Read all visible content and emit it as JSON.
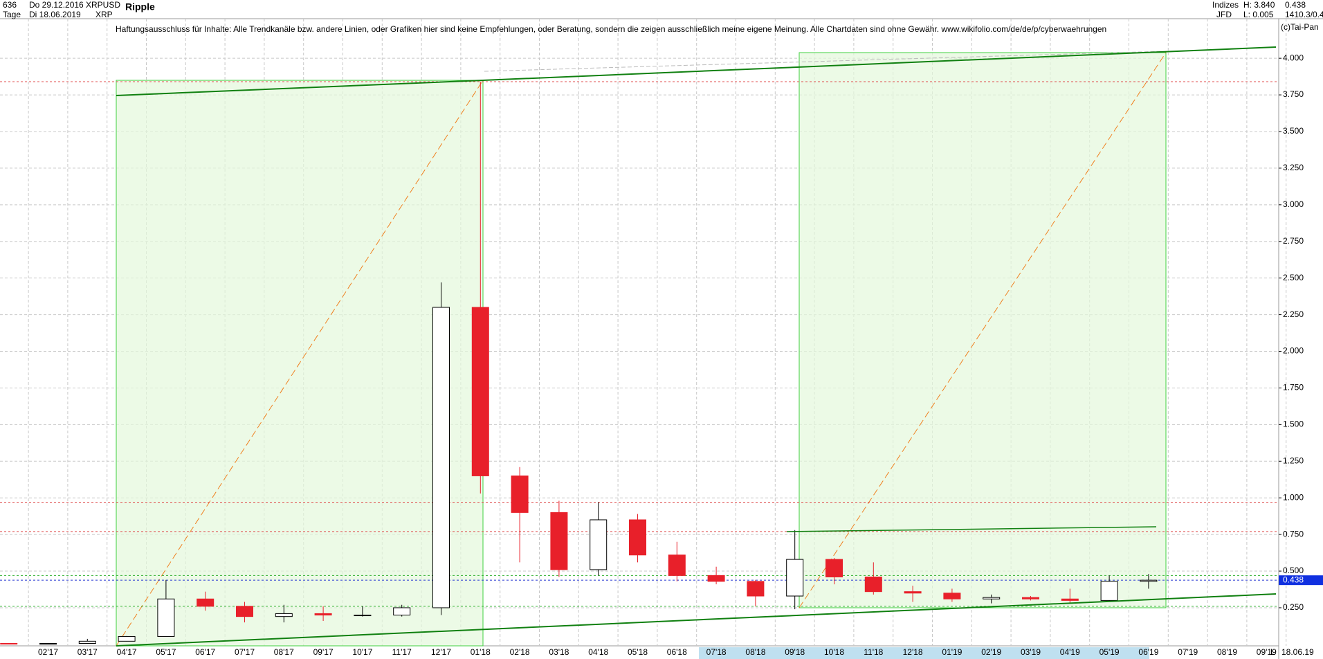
{
  "header": {
    "bars": "636",
    "start": "Do 29.12.2016",
    "symbol": "XRPUSD",
    "name": "Ripple",
    "period": "Tage",
    "end": "Di 18.06.2019",
    "short": "XRP",
    "group": "Indizes",
    "exchange": "JFD",
    "high": "H: 3.840",
    "low": "L: 0.005",
    "last": "0.438",
    "extra": "1410.3/0.4",
    "disclaimer": "Haftungsausschluss für Inhalte: Alle Trendkanäle bzw. andere Linien, oder Grafiken hier sind keine Empfehlungen, oder Beratung, sondern die zeigen ausschließlich meine eigene Meinung. Alle Chartdaten sind ohne Gewähr.  www.wikifolio.com/de/de/p/cyberwaehrungen",
    "copyright": "(c)Tai-Pan",
    "date_end": "18.06.19",
    "l_mark": "L"
  },
  "chart_data": {
    "type": "candlestick",
    "categories": [
      null,
      "02'17",
      "03'17",
      "04'17",
      "05'17",
      "06'17",
      "07'17",
      "08'17",
      "09'17",
      "10'17",
      "11'17",
      "12'17",
      "01'18",
      "02'18",
      "03'18",
      "04'18",
      "05'18",
      "06'18",
      "07'18",
      "08'18",
      "09'18",
      "10'18",
      "11'18",
      "12'18",
      "01'19",
      "02'19",
      "03'19",
      "04'19",
      "05'19",
      "06'19",
      "07'19",
      "08'19",
      "09'19"
    ],
    "open": [
      0.0065,
      0.0063,
      0.0064,
      0.0216,
      0.054,
      0.31,
      0.26,
      0.19,
      0.21,
      0.2,
      0.2,
      0.25,
      2.3,
      1.15,
      0.9,
      0.51,
      0.85,
      0.61,
      0.47,
      0.43,
      0.33,
      0.58,
      0.46,
      0.36,
      0.35,
      0.31,
      0.32,
      0.31,
      0.3,
      0.43,
      null,
      null,
      null
    ],
    "high": [
      0.0079,
      0.0074,
      0.0377,
      0.0568,
      0.44,
      0.36,
      0.29,
      0.27,
      0.26,
      0.26,
      0.27,
      2.47,
      3.84,
      1.21,
      0.98,
      0.97,
      0.89,
      0.7,
      0.53,
      0.44,
      0.78,
      0.59,
      0.56,
      0.4,
      0.38,
      0.34,
      0.33,
      0.38,
      0.47,
      0.48,
      null,
      null,
      null
    ],
    "low": [
      0.005,
      0.0057,
      0.0059,
      0.0204,
      0.058,
      0.23,
      0.15,
      0.15,
      0.16,
      0.19,
      0.19,
      0.2,
      1.03,
      0.56,
      0.46,
      0.47,
      0.56,
      0.43,
      0.41,
      0.26,
      0.24,
      0.41,
      0.34,
      0.29,
      0.29,
      0.28,
      0.3,
      0.28,
      0.29,
      0.38,
      null,
      null,
      null
    ],
    "close": [
      0.0063,
      0.0064,
      0.0216,
      0.054,
      0.31,
      0.26,
      0.19,
      0.21,
      0.2,
      0.2,
      0.25,
      2.3,
      1.15,
      0.9,
      0.51,
      0.85,
      0.61,
      0.47,
      0.43,
      0.33,
      0.58,
      0.46,
      0.36,
      0.35,
      0.31,
      0.32,
      0.31,
      0.3,
      0.43,
      0.438,
      null,
      null,
      null
    ],
    "up_color": "#000000",
    "down_color": "#e8202a",
    "ylim": [
      -0.01,
      4.27
    ],
    "yticks": [
      {
        "value": 0.25,
        "label": "0.250"
      },
      {
        "value": 0.5,
        "label": "0.500"
      },
      {
        "value": 0.75,
        "label": "0.750"
      },
      {
        "value": 1,
        "label": "1.000"
      },
      {
        "value": 1.25,
        "label": "1.250"
      },
      {
        "value": 1.5,
        "label": "1.500"
      },
      {
        "value": 1.75,
        "label": "1.750"
      },
      {
        "value": 2,
        "label": "2.000"
      },
      {
        "value": 2.25,
        "label": "2.250"
      },
      {
        "value": 2.5,
        "label": "2.500"
      },
      {
        "value": 2.75,
        "label": "2.750"
      },
      {
        "value": 3,
        "label": "3.000"
      },
      {
        "value": 3.25,
        "label": "3.250"
      },
      {
        "value": 3.5,
        "label": "3.500"
      },
      {
        "value": 3.75,
        "label": "3.750"
      },
      {
        "value": 4,
        "label": "4.000"
      }
    ],
    "grid": true,
    "reference_lines": [
      {
        "value": 3.84,
        "color": "#e05050"
      },
      {
        "value": 0.97,
        "color": "#e05050"
      },
      {
        "value": 0.77,
        "color": "#e05050"
      },
      {
        "value": 0.47,
        "color": "#30b030"
      },
      {
        "value": 0.438,
        "color": "#2030d0"
      },
      {
        "value": 0.26,
        "color": "#30b030"
      }
    ]
  }
}
